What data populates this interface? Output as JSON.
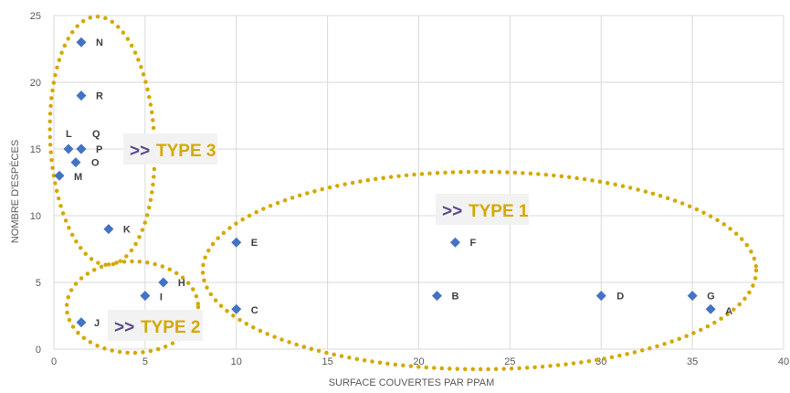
{
  "chart_data": {
    "type": "scatter",
    "xlabel": "SURFACE COUVERTES PAR PPAM",
    "ylabel": "NOMBRE D'ESPÈCES",
    "xlim": [
      0,
      40
    ],
    "ylim": [
      0,
      25
    ],
    "x_ticks": [
      "0",
      "5",
      "10",
      "15",
      "20",
      "25",
      "30",
      "35",
      "40"
    ],
    "y_ticks": [
      "0",
      "5",
      "10",
      "15",
      "20",
      "25"
    ],
    "grid": true,
    "marker_color": "#4472c4",
    "points": [
      {
        "label": "N",
        "x": 1.5,
        "y": 23
      },
      {
        "label": "R",
        "x": 1.5,
        "y": 19
      },
      {
        "label": "L",
        "x": 0.8,
        "y": 15
      },
      {
        "label": "Q",
        "x": 1.5,
        "y": 15
      },
      {
        "label": "P",
        "x": 1.5,
        "y": 15
      },
      {
        "label": "O",
        "x": 1.2,
        "y": 14
      },
      {
        "label": "M",
        "x": 0.3,
        "y": 13
      },
      {
        "label": "K",
        "x": 3,
        "y": 9
      },
      {
        "label": "H",
        "x": 6,
        "y": 5
      },
      {
        "label": "I",
        "x": 5,
        "y": 4
      },
      {
        "label": "J",
        "x": 1.5,
        "y": 2
      },
      {
        "label": "E",
        "x": 10,
        "y": 8
      },
      {
        "label": "C",
        "x": 10,
        "y": 3
      },
      {
        "label": "F",
        "x": 22,
        "y": 8
      },
      {
        "label": "B",
        "x": 21,
        "y": 4
      },
      {
        "label": "D",
        "x": 30,
        "y": 4
      },
      {
        "label": "G",
        "x": 35,
        "y": 4
      },
      {
        "label": "A",
        "x": 36,
        "y": 3
      }
    ],
    "annotations": [
      {
        "text": "TYPE 1",
        "arrow": ">>",
        "color": "#d4a800"
      },
      {
        "text": "TYPE 2",
        "arrow": ">>",
        "color": "#d4a800"
      },
      {
        "text": "TYPE 3",
        "arrow": ">>",
        "color": "#d4a800"
      }
    ]
  }
}
